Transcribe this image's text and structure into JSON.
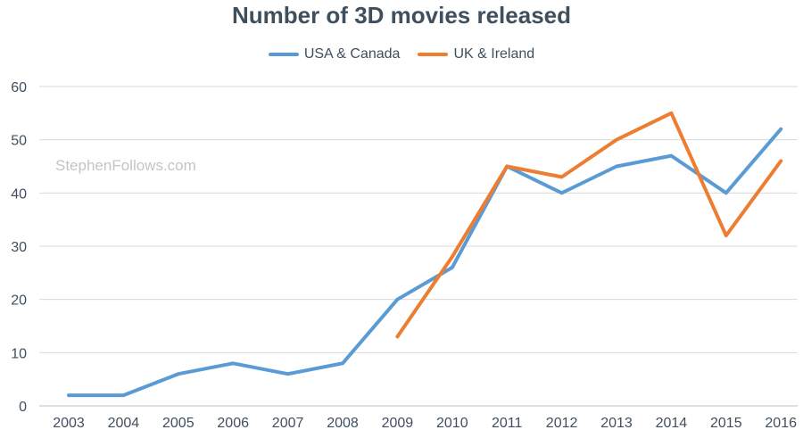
{
  "chart_data": {
    "type": "line",
    "title": "Number of 3D movies released",
    "categories": [
      "2003",
      "2004",
      "2005",
      "2006",
      "2007",
      "2008",
      "2009",
      "2010",
      "2011",
      "2012",
      "2013",
      "2014",
      "2015",
      "2016"
    ],
    "series": [
      {
        "name": "USA & Canada",
        "color": "#5b9bd5",
        "values": [
          2,
          2,
          6,
          8,
          6,
          8,
          20,
          26,
          45,
          40,
          45,
          47,
          40,
          52
        ]
      },
      {
        "name": "UK & Ireland",
        "color": "#ed7d31",
        "values": [
          null,
          null,
          null,
          null,
          null,
          null,
          13,
          28,
          45,
          43,
          50,
          55,
          32,
          46
        ]
      }
    ],
    "ylim": [
      0,
      60
    ],
    "yticks": [
      0,
      10,
      20,
      30,
      40,
      50,
      60
    ],
    "xlabel": "",
    "ylabel": "",
    "grid": true,
    "legend_position": "top-center"
  },
  "watermark": "StephenFollows.com"
}
